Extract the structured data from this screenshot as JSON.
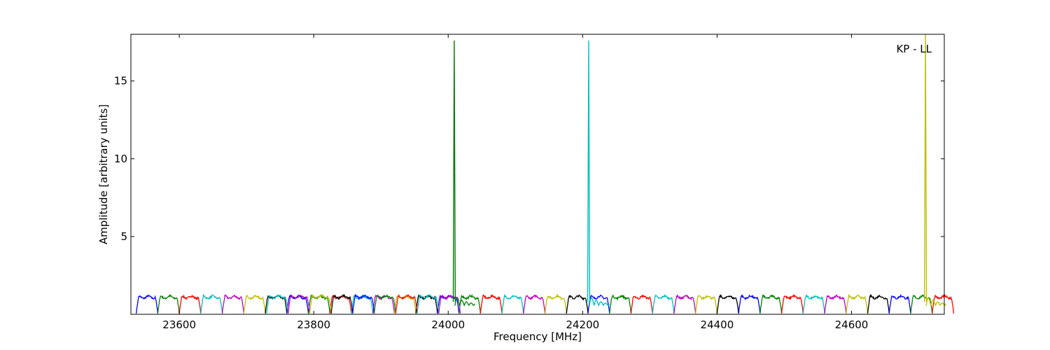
{
  "chart_data": {
    "type": "line",
    "title": "",
    "annotation": "KP - LL",
    "xlabel": "Frequency [MHz]",
    "ylabel": "Amplitude [arbitrary units]",
    "xlim": [
      23528,
      24738
    ],
    "ylim": [
      0,
      18
    ],
    "xticks": [
      23600,
      23800,
      24000,
      24200,
      24400,
      24600
    ],
    "yticks": [
      5,
      10,
      15
    ],
    "grid": false,
    "legend": "none",
    "palette": [
      "#0000ff",
      "#008000",
      "#ff0000",
      "#00bfbf",
      "#bf00bf",
      "#bfbf00",
      "#000000"
    ],
    "channel_width_mhz": 32,
    "channel_plateau_amplitude": 1.1,
    "channels_primary_start": [
      23536,
      23568,
      23600,
      23632,
      23664,
      23696,
      23728,
      23760,
      23792,
      23824,
      23856,
      23888,
      23920,
      23952,
      23984,
      24016,
      24048,
      24080,
      24112,
      24144,
      24176,
      24208,
      24240,
      24272,
      24304,
      24336,
      24368,
      24400,
      24432,
      24464,
      24496,
      24528,
      24560,
      24592,
      24624,
      24656,
      24688,
      24720
    ],
    "channels_overlap_start": [
      23730,
      23762,
      23794,
      23826,
      23858,
      23890,
      23922,
      23954,
      23986
    ],
    "spikes": [
      {
        "x": 24009,
        "peak": 17.6,
        "color": "#008000"
      },
      {
        "x": 24209,
        "peak": 17.6,
        "color": "#00bfbf"
      },
      {
        "x": 24710,
        "peak": 18.0,
        "color": "#bfbf00"
      }
    ]
  }
}
